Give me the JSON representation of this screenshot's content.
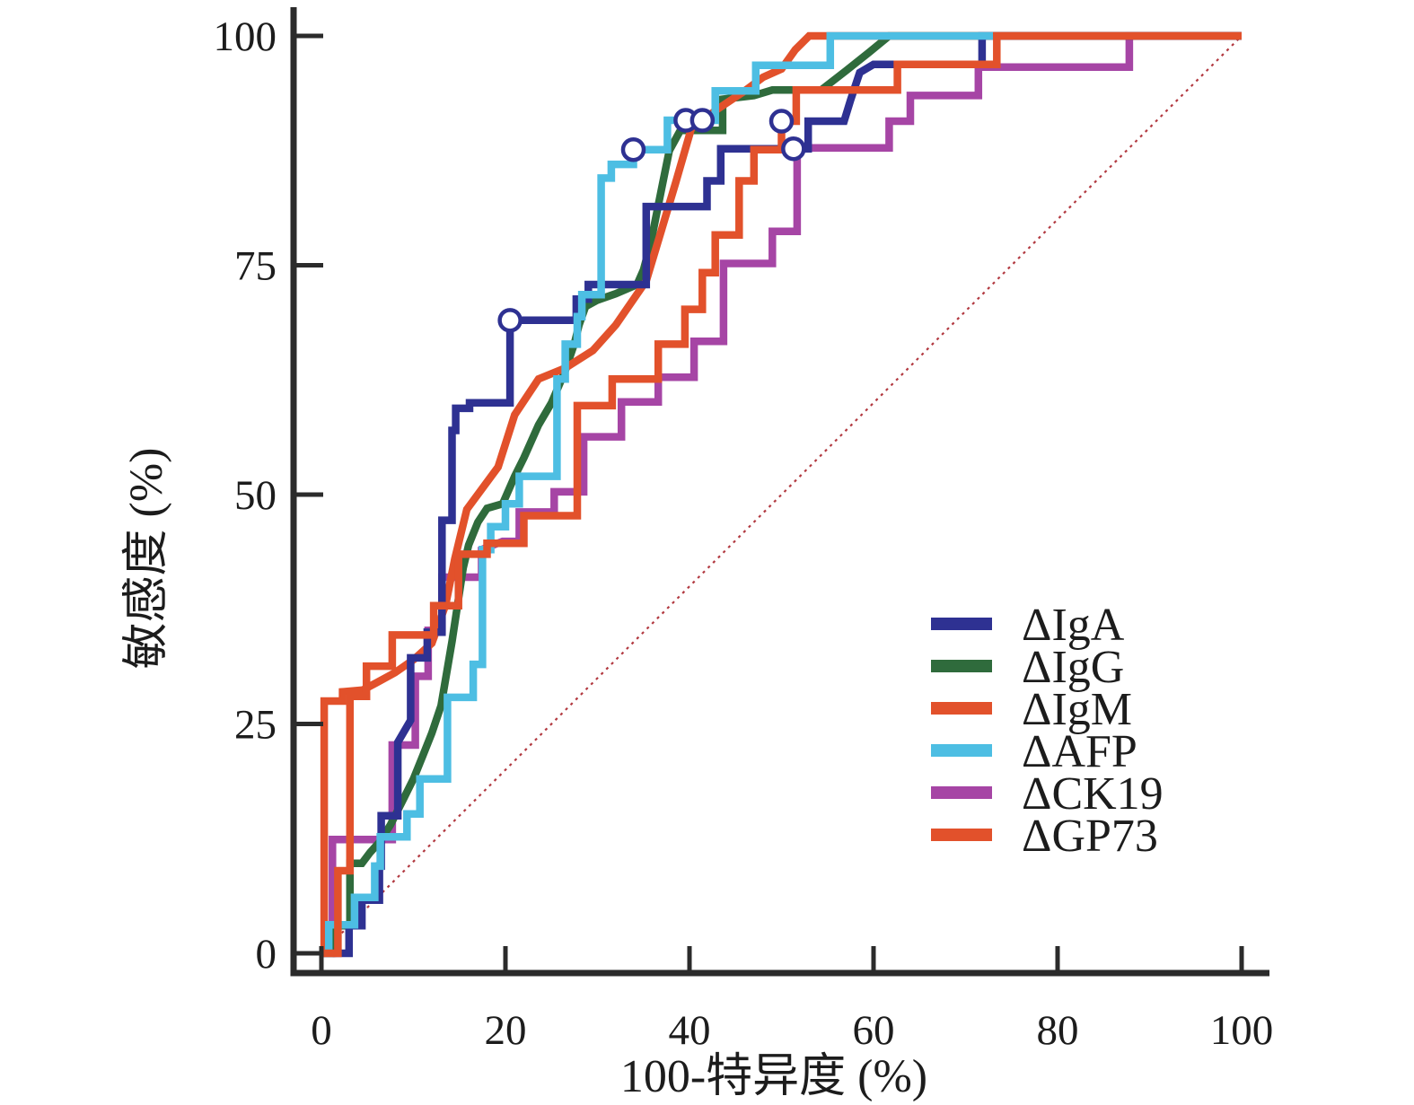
{
  "chart_data": {
    "type": "line",
    "subtype": "roc-curves",
    "title": "",
    "xlabel": "100-特异度 (%)",
    "ylabel": "敏感度 (%)",
    "xlim": [
      0,
      100
    ],
    "ylim": [
      0,
      100
    ],
    "x_ticks": [
      0,
      20,
      40,
      60,
      80,
      100
    ],
    "y_ticks": [
      0,
      25,
      50,
      75,
      100
    ],
    "grid": false,
    "legend_position": "inside-right-middle",
    "axis_color": "#2b2b2b",
    "reference_line": {
      "name": "chance-diagonal",
      "from": [
        0,
        0
      ],
      "to": [
        100,
        100
      ],
      "color": "#b23940",
      "style": "dotted"
    },
    "series": [
      {
        "key": "iga",
        "name": "ΔIgA",
        "color": "#2E3192",
        "z": 4,
        "points": [
          [
            0,
            0
          ],
          [
            3,
            0
          ],
          [
            3,
            3
          ],
          [
            4.4,
            3
          ],
          [
            4.4,
            5.8
          ],
          [
            6.3,
            5.8
          ],
          [
            6.3,
            9.5
          ],
          [
            6.5,
            9.5
          ],
          [
            6.5,
            15
          ],
          [
            8.3,
            15
          ],
          [
            8.3,
            23
          ],
          [
            9.7,
            25.4
          ],
          [
            9.7,
            32.2
          ],
          [
            11.5,
            32.2
          ],
          [
            11.5,
            35
          ],
          [
            13.1,
            35
          ],
          [
            13.1,
            47.2
          ],
          [
            14.2,
            47.2
          ],
          [
            14.2,
            57
          ],
          [
            14.6,
            57
          ],
          [
            14.6,
            59.4
          ],
          [
            16.1,
            59.4
          ],
          [
            16.1,
            60
          ],
          [
            20.5,
            60
          ],
          [
            20.5,
            69
          ],
          [
            27.7,
            69
          ],
          [
            27.7,
            71.3
          ],
          [
            29,
            71.3
          ],
          [
            29,
            72.9
          ],
          [
            35.3,
            72.9
          ],
          [
            35.3,
            81.4
          ],
          [
            41.9,
            81.4
          ],
          [
            41.9,
            84.2
          ],
          [
            43.4,
            84.2
          ],
          [
            43.4,
            87.7
          ],
          [
            52.9,
            87.7
          ],
          [
            52.9,
            90.7
          ],
          [
            56.8,
            90.7
          ],
          [
            57.5,
            93
          ],
          [
            58.5,
            96
          ],
          [
            60,
            96.9
          ],
          [
            71.8,
            96.9
          ],
          [
            71.8,
            100
          ],
          [
            100,
            100
          ]
        ]
      },
      {
        "key": "igg",
        "name": "ΔIgG",
        "color": "#2F6B3C",
        "z": 2,
        "points": [
          [
            0,
            0
          ],
          [
            1,
            0
          ],
          [
            1,
            3
          ],
          [
            3.1,
            3
          ],
          [
            3.1,
            9.8
          ],
          [
            4.4,
            9.8
          ],
          [
            5.3,
            11
          ],
          [
            6.3,
            12.1
          ],
          [
            7.5,
            14
          ],
          [
            9,
            17
          ],
          [
            10,
            19
          ],
          [
            11,
            21.5
          ],
          [
            12,
            24
          ],
          [
            13,
            27
          ],
          [
            13.6,
            30.5
          ],
          [
            14.2,
            34
          ],
          [
            14.8,
            38
          ],
          [
            15.4,
            42
          ],
          [
            16,
            44.5
          ],
          [
            17,
            47
          ],
          [
            18,
            48.5
          ],
          [
            19.7,
            49
          ],
          [
            21,
            52
          ],
          [
            22,
            54
          ],
          [
            23.6,
            57.6
          ],
          [
            25,
            60
          ],
          [
            26.5,
            63.5
          ],
          [
            27.5,
            66.5
          ],
          [
            28,
            68.5
          ],
          [
            28.7,
            70.5
          ],
          [
            30,
            71.2
          ],
          [
            32,
            71.9
          ],
          [
            34.3,
            72.9
          ],
          [
            35,
            74.5
          ],
          [
            35.8,
            77.5
          ],
          [
            36.5,
            81
          ],
          [
            37.2,
            84.5
          ],
          [
            37.8,
            87.5
          ],
          [
            39,
            89.7
          ],
          [
            43.6,
            89.7
          ],
          [
            43.6,
            93.1
          ],
          [
            47,
            93.5
          ],
          [
            49,
            94.1
          ],
          [
            54.3,
            94.1
          ],
          [
            57,
            96.2
          ],
          [
            59.5,
            98.2
          ],
          [
            61.7,
            100
          ],
          [
            100,
            100
          ]
        ]
      },
      {
        "key": "igm",
        "name": "ΔIgM",
        "color": "#E2512B",
        "z": 6,
        "points": [
          [
            0,
            0
          ],
          [
            1.8,
            0
          ],
          [
            1.8,
            9
          ],
          [
            3.1,
            9
          ],
          [
            3.1,
            28
          ],
          [
            4.9,
            28
          ],
          [
            4.9,
            31.3
          ],
          [
            7.7,
            31.3
          ],
          [
            7.7,
            34.7
          ],
          [
            12.2,
            34.7
          ],
          [
            12.2,
            37.9
          ],
          [
            14.9,
            37.9
          ],
          [
            14.9,
            43.5
          ],
          [
            18,
            43.5
          ],
          [
            18,
            44.7
          ],
          [
            22,
            44.7
          ],
          [
            22,
            47.7
          ],
          [
            27.8,
            47.7
          ],
          [
            27.8,
            59.7
          ],
          [
            31.6,
            59.7
          ],
          [
            31.6,
            62.6
          ],
          [
            36.6,
            62.6
          ],
          [
            36.6,
            66.4
          ],
          [
            39.5,
            66.4
          ],
          [
            39.5,
            70.2
          ],
          [
            41.4,
            70.2
          ],
          [
            41.4,
            74.2
          ],
          [
            42.8,
            74.2
          ],
          [
            42.8,
            78.3
          ],
          [
            45.4,
            78.3
          ],
          [
            45.4,
            84.2
          ],
          [
            47,
            84.2
          ],
          [
            47,
            87.6
          ],
          [
            50,
            87.6
          ],
          [
            50,
            90.7
          ],
          [
            51.6,
            90.7
          ],
          [
            51.6,
            94.1
          ],
          [
            62.6,
            94.1
          ],
          [
            62.6,
            96.9
          ],
          [
            73.4,
            96.9
          ],
          [
            73.4,
            100
          ],
          [
            100,
            100
          ]
        ]
      },
      {
        "key": "afp",
        "name": "ΔAFP",
        "color": "#4DBEE3",
        "z": 5,
        "points": [
          [
            0,
            0
          ],
          [
            0.8,
            0
          ],
          [
            0.8,
            3.1
          ],
          [
            3.6,
            3.1
          ],
          [
            3.6,
            6.1
          ],
          [
            5.8,
            6.1
          ],
          [
            5.8,
            9.5
          ],
          [
            6.4,
            9.5
          ],
          [
            6.4,
            12.7
          ],
          [
            9.3,
            12.7
          ],
          [
            9.3,
            15.2
          ],
          [
            10.7,
            15.2
          ],
          [
            10.7,
            19
          ],
          [
            13.7,
            19
          ],
          [
            13.7,
            27.9
          ],
          [
            16.5,
            27.9
          ],
          [
            16.5,
            31.5
          ],
          [
            17.5,
            31.5
          ],
          [
            17.5,
            44
          ],
          [
            18.4,
            44
          ],
          [
            18.4,
            46.5
          ],
          [
            20,
            46.5
          ],
          [
            20,
            49
          ],
          [
            21.5,
            49
          ],
          [
            21.5,
            52
          ],
          [
            25.6,
            52
          ],
          [
            25.6,
            62.6
          ],
          [
            26.5,
            62.6
          ],
          [
            26.5,
            66.4
          ],
          [
            27.8,
            66.4
          ],
          [
            27.8,
            69.4
          ],
          [
            28.3,
            69.4
          ],
          [
            28.3,
            71.8
          ],
          [
            30.4,
            71.8
          ],
          [
            30.4,
            84.5
          ],
          [
            31.5,
            84.5
          ],
          [
            31.5,
            86
          ],
          [
            33.9,
            86
          ],
          [
            33.9,
            87.6
          ],
          [
            37.6,
            87.6
          ],
          [
            37.6,
            90.8
          ],
          [
            42.8,
            90.8
          ],
          [
            42.8,
            94
          ],
          [
            47.2,
            94
          ],
          [
            47.2,
            96.8
          ],
          [
            55.3,
            96.8
          ],
          [
            55.3,
            100
          ],
          [
            73,
            100
          ]
        ]
      },
      {
        "key": "ck19",
        "name": "ΔCK19",
        "color": "#A645A5",
        "z": 1,
        "points": [
          [
            0,
            0
          ],
          [
            1.2,
            0
          ],
          [
            1.2,
            12.4
          ],
          [
            7.7,
            12.4
          ],
          [
            7.7,
            22.7
          ],
          [
            10.2,
            22.7
          ],
          [
            10.2,
            30.2
          ],
          [
            11.6,
            30.2
          ],
          [
            11.6,
            35.2
          ],
          [
            13.1,
            35.2
          ],
          [
            13.1,
            41
          ],
          [
            17.4,
            41
          ],
          [
            17.4,
            44
          ],
          [
            19.7,
            44.9
          ],
          [
            21.5,
            44.9
          ],
          [
            21.5,
            48.1
          ],
          [
            25.3,
            48.1
          ],
          [
            25.3,
            50.3
          ],
          [
            28.5,
            50.3
          ],
          [
            28.5,
            56.3
          ],
          [
            32.6,
            56.3
          ],
          [
            32.6,
            60.1
          ],
          [
            36.6,
            60.1
          ],
          [
            36.6,
            62.8
          ],
          [
            40.5,
            62.8
          ],
          [
            40.5,
            66.7
          ],
          [
            43.7,
            66.7
          ],
          [
            43.7,
            75.2
          ],
          [
            49,
            75.2
          ],
          [
            49,
            78.7
          ],
          [
            51.7,
            78.7
          ],
          [
            51.7,
            87.8
          ],
          [
            61.7,
            87.8
          ],
          [
            61.7,
            90.7
          ],
          [
            64,
            90.7
          ],
          [
            64,
            93.5
          ],
          [
            71.4,
            93.5
          ],
          [
            71.4,
            96.6
          ],
          [
            87.8,
            96.6
          ],
          [
            87.8,
            100
          ],
          [
            100,
            100
          ]
        ]
      },
      {
        "key": "gp73",
        "name": "ΔGP73",
        "color": "#E2512B",
        "z": 3,
        "points": [
          [
            0,
            0
          ],
          [
            0.3,
            0
          ],
          [
            0.3,
            27.5
          ],
          [
            2.3,
            27.5
          ],
          [
            2.3,
            28.5
          ],
          [
            4.5,
            28.7
          ],
          [
            6,
            29.5
          ],
          [
            8,
            30.6
          ],
          [
            10,
            32
          ],
          [
            12,
            33.8
          ],
          [
            13.5,
            38
          ],
          [
            14.5,
            43
          ],
          [
            15.8,
            48.4
          ],
          [
            19.2,
            53
          ],
          [
            21,
            58.7
          ],
          [
            23.6,
            62.6
          ],
          [
            26.5,
            63.8
          ],
          [
            29.5,
            65.7
          ],
          [
            32,
            68.5
          ],
          [
            35.3,
            73.3
          ],
          [
            37,
            79
          ],
          [
            38.5,
            84
          ],
          [
            40.2,
            89.9
          ],
          [
            43,
            92
          ],
          [
            46,
            94
          ],
          [
            48,
            95.5
          ],
          [
            50,
            96.4
          ],
          [
            51.5,
            98.5
          ],
          [
            53,
            100
          ],
          [
            100,
            100
          ]
        ]
      }
    ],
    "cutoff_markers": [
      {
        "x": 20.5,
        "y": 69
      },
      {
        "x": 33.9,
        "y": 87.6
      },
      {
        "x": 39.6,
        "y": 90.8
      },
      {
        "x": 41.4,
        "y": 90.8
      },
      {
        "x": 50,
        "y": 90.7
      },
      {
        "x": 51.3,
        "y": 87.7
      }
    ],
    "marker_style": {
      "fill": "#ffffff",
      "stroke": "#2E3192"
    }
  }
}
